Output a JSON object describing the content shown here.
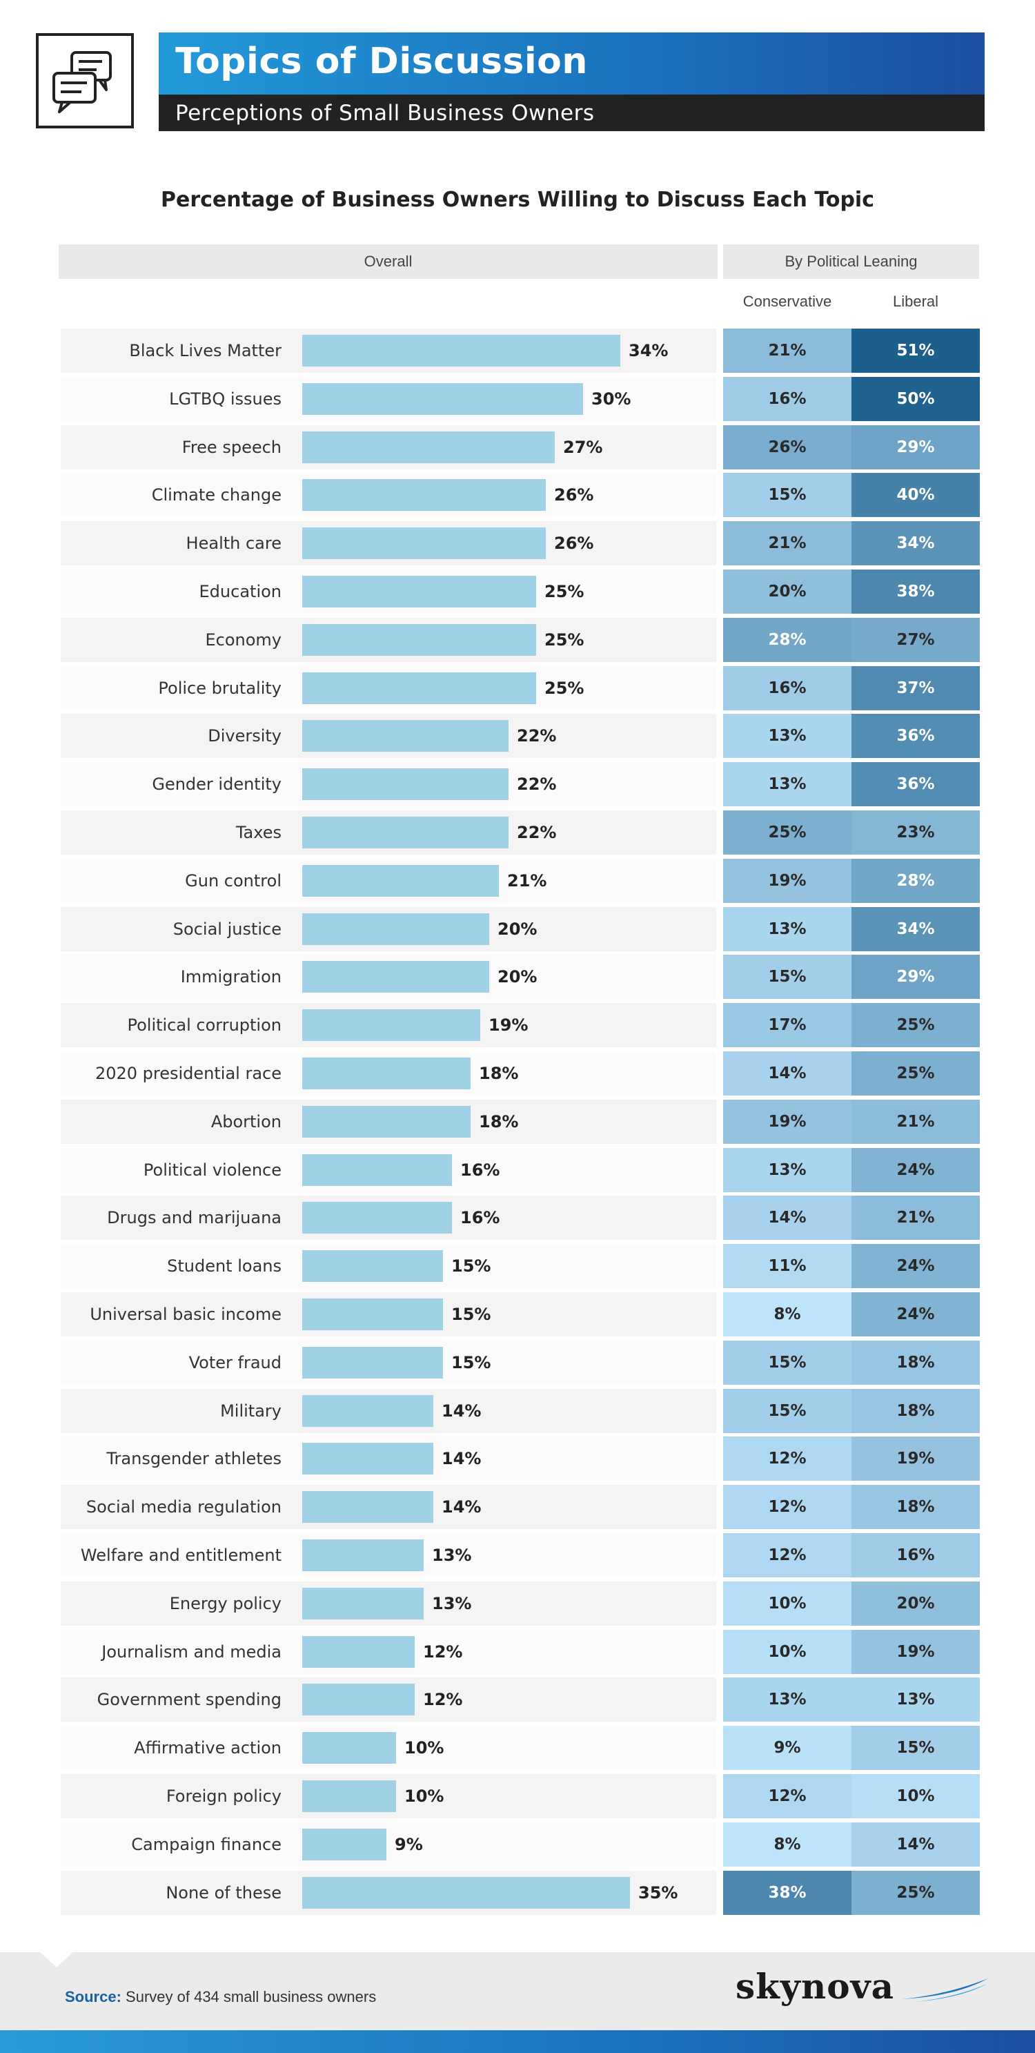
{
  "header": {
    "title": "Topics of Discussion",
    "subtitle": "Perceptions of Small Business Owners",
    "icon": "chat-bubbles-icon"
  },
  "chart_data": {
    "type": "table",
    "title": "Percentage of Business Owners Willing to Discuss Each Topic",
    "group_headers": [
      "Overall",
      "By Political Leaning"
    ],
    "columns": [
      "Conservative",
      "Liberal"
    ],
    "unit": "%",
    "value_max": 35,
    "rows": [
      {
        "topic": "Black Lives Matter",
        "overall": 34,
        "conservative": 21,
        "liberal": 51
      },
      {
        "topic": "LGTBQ issues",
        "overall": 30,
        "conservative": 16,
        "liberal": 50
      },
      {
        "topic": "Free speech",
        "overall": 27,
        "conservative": 26,
        "liberal": 29
      },
      {
        "topic": "Climate change",
        "overall": 26,
        "conservative": 15,
        "liberal": 40
      },
      {
        "topic": "Health care",
        "overall": 26,
        "conservative": 21,
        "liberal": 34
      },
      {
        "topic": "Education",
        "overall": 25,
        "conservative": 20,
        "liberal": 38
      },
      {
        "topic": "Economy",
        "overall": 25,
        "conservative": 28,
        "liberal": 27
      },
      {
        "topic": "Police brutality",
        "overall": 25,
        "conservative": 16,
        "liberal": 37
      },
      {
        "topic": "Diversity",
        "overall": 22,
        "conservative": 13,
        "liberal": 36
      },
      {
        "topic": "Gender identity",
        "overall": 22,
        "conservative": 13,
        "liberal": 36
      },
      {
        "topic": "Taxes",
        "overall": 22,
        "conservative": 25,
        "liberal": 23
      },
      {
        "topic": "Gun control",
        "overall": 21,
        "conservative": 19,
        "liberal": 28
      },
      {
        "topic": "Social justice",
        "overall": 20,
        "conservative": 13,
        "liberal": 34
      },
      {
        "topic": "Immigration",
        "overall": 20,
        "conservative": 15,
        "liberal": 29
      },
      {
        "topic": "Political corruption",
        "overall": 19,
        "conservative": 17,
        "liberal": 25
      },
      {
        "topic": "2020 presidential race",
        "overall": 18,
        "conservative": 14,
        "liberal": 25
      },
      {
        "topic": "Abortion",
        "overall": 18,
        "conservative": 19,
        "liberal": 21
      },
      {
        "topic": "Political violence",
        "overall": 16,
        "conservative": 13,
        "liberal": 24
      },
      {
        "topic": "Drugs and marijuana",
        "overall": 16,
        "conservative": 14,
        "liberal": 21
      },
      {
        "topic": "Student loans",
        "overall": 15,
        "conservative": 11,
        "liberal": 24
      },
      {
        "topic": "Universal basic income",
        "overall": 15,
        "conservative": 8,
        "liberal": 24
      },
      {
        "topic": "Voter fraud",
        "overall": 15,
        "conservative": 15,
        "liberal": 18
      },
      {
        "topic": "Military",
        "overall": 14,
        "conservative": 15,
        "liberal": 18
      },
      {
        "topic": "Transgender athletes",
        "overall": 14,
        "conservative": 12,
        "liberal": 19
      },
      {
        "topic": "Social media regulation",
        "overall": 14,
        "conservative": 12,
        "liberal": 18
      },
      {
        "topic": "Welfare and entitlement",
        "overall": 13,
        "conservative": 12,
        "liberal": 16
      },
      {
        "topic": "Energy policy",
        "overall": 13,
        "conservative": 10,
        "liberal": 20
      },
      {
        "topic": "Journalism and media",
        "overall": 12,
        "conservative": 10,
        "liberal": 19
      },
      {
        "topic": "Government spending",
        "overall": 12,
        "conservative": 13,
        "liberal": 13
      },
      {
        "topic": "Affirmative action",
        "overall": 10,
        "conservative": 9,
        "liberal": 15
      },
      {
        "topic": "Foreign policy",
        "overall": 10,
        "conservative": 12,
        "liberal": 10
      },
      {
        "topic": "Campaign finance",
        "overall": 9,
        "conservative": 8,
        "liberal": 14
      },
      {
        "topic": "None of these",
        "overall": 35,
        "conservative": 38,
        "liberal": 25
      }
    ],
    "colors": {
      "bar": "#a0d1e7",
      "heat_low": "#bde4fb",
      "heat_high": "#1c5f8c",
      "row_shade": "#f4f4f4"
    }
  },
  "footer": {
    "source_label": "Source:",
    "source_text": "Survey of 434 small business owners",
    "brand": "skynova"
  }
}
